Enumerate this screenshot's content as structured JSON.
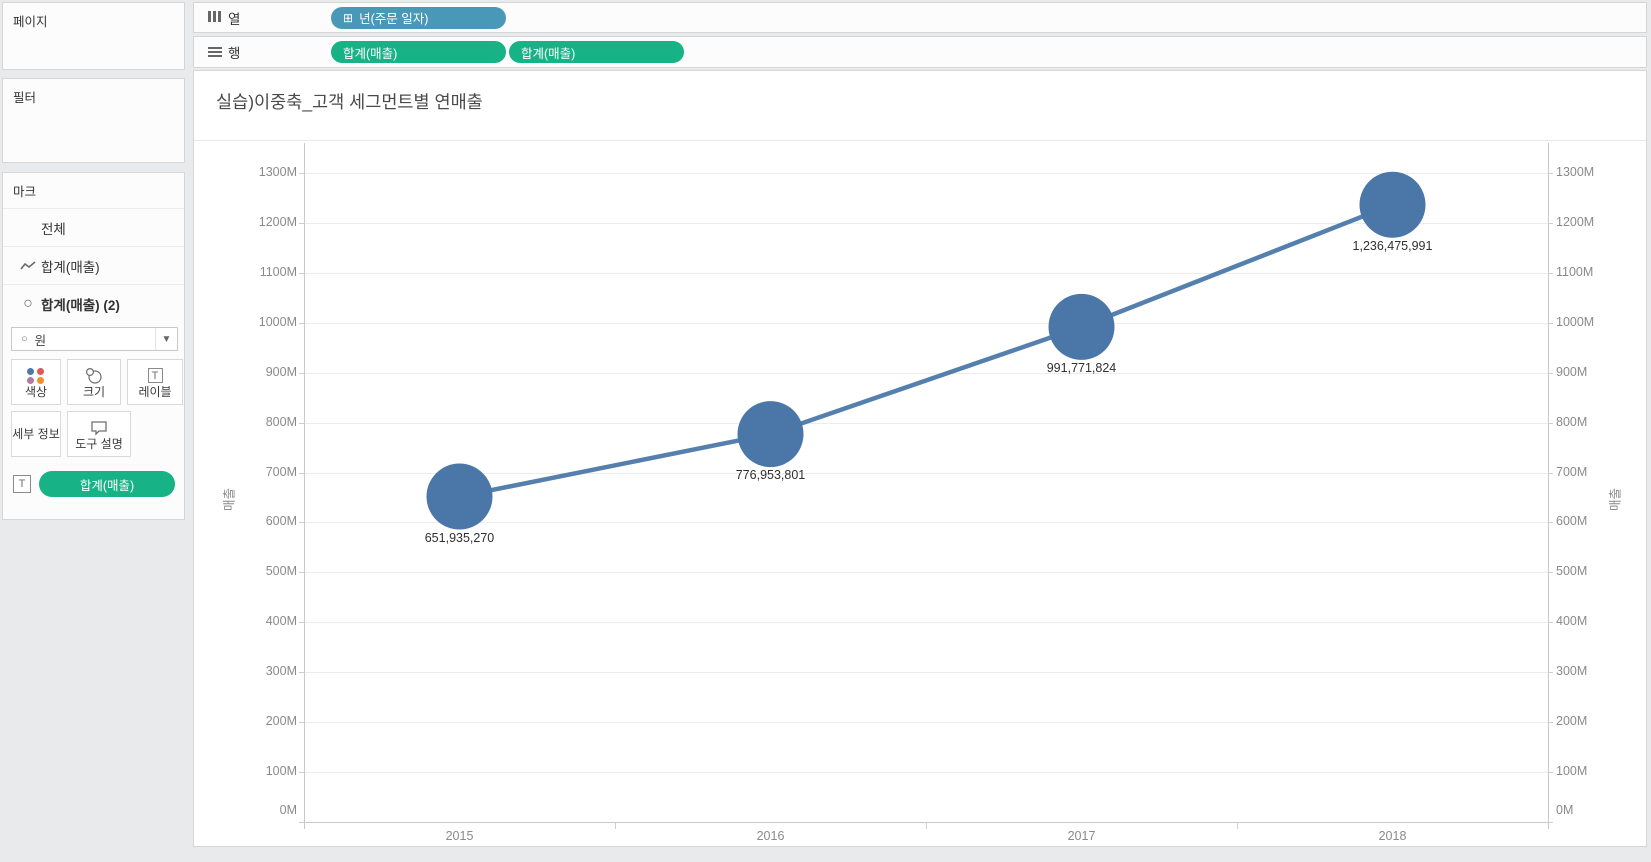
{
  "left_panel": {
    "pages_label": "페이지",
    "filters_label": "필터",
    "marks": {
      "header": "마크",
      "rows": [
        {
          "icon": "none",
          "label": "전체",
          "bold": false
        },
        {
          "icon": "line-icon",
          "label": "합계(매출)",
          "bold": false
        },
        {
          "icon": "circle-icon",
          "label": "합계(매출) (2)",
          "bold": true
        }
      ],
      "mark_type_dropdown": {
        "icon": "circle-icon",
        "value": "원"
      },
      "buttons": [
        {
          "icon": "color-dots-icon",
          "label": "색상",
          "dot_colors": [
            "#4e79a7",
            "#e05759",
            "#b07aa1",
            "#f28e2b"
          ]
        },
        {
          "icon": "size-circles-icon",
          "label": "크기"
        },
        {
          "icon": "label-text-icon",
          "label": "레이블"
        },
        {
          "icon": "none",
          "label": "세부 정보"
        },
        {
          "icon": "tooltip-bubble-icon",
          "label": "도구 설명"
        }
      ],
      "label_shelf": {
        "icon": "text-icon",
        "pill": "합계(매출)"
      }
    }
  },
  "shelves": {
    "columns": {
      "label": "열",
      "pills": [
        {
          "text": "년(주문 일자)",
          "type": "dimension",
          "prefix": "⊞"
        }
      ]
    },
    "rows": {
      "label": "행",
      "pills": [
        {
          "text": "합계(매출)",
          "type": "measure"
        },
        {
          "text": "합계(매출)",
          "type": "measure"
        }
      ]
    }
  },
  "sheet": {
    "title": "실습)이중축_고객 세그먼트별 연매출"
  },
  "chart_data": {
    "type": "line",
    "title": "실습)이중축_고객 세그먼트별 연매출",
    "x": [
      "2015",
      "2016",
      "2017",
      "2018"
    ],
    "series": [
      {
        "name": "합계(매출)",
        "values": [
          651935270,
          776953801,
          991771824,
          1236475991
        ]
      }
    ],
    "data_labels": [
      "651,935,270",
      "776,953,801",
      "991,771,824",
      "1,236,475,991"
    ],
    "ylabel_left": "매출",
    "ylabel_right": "매출",
    "ylim": [
      0,
      1300000000
    ],
    "ytick_interval": 100000000,
    "ytick_labels": [
      "0M",
      "100M",
      "200M",
      "300M",
      "400M",
      "500M",
      "600M",
      "700M",
      "800M",
      "900M",
      "1000M",
      "1100M",
      "1200M",
      "1300M"
    ],
    "dual_axis": true,
    "grid": true,
    "legend": "none",
    "marker": "circle"
  },
  "colors": {
    "dimension_pill": "#4a98b8",
    "measure_pill": "#17b286",
    "mark_fill": "#4b76a8",
    "mark_line": "#5580ad"
  }
}
